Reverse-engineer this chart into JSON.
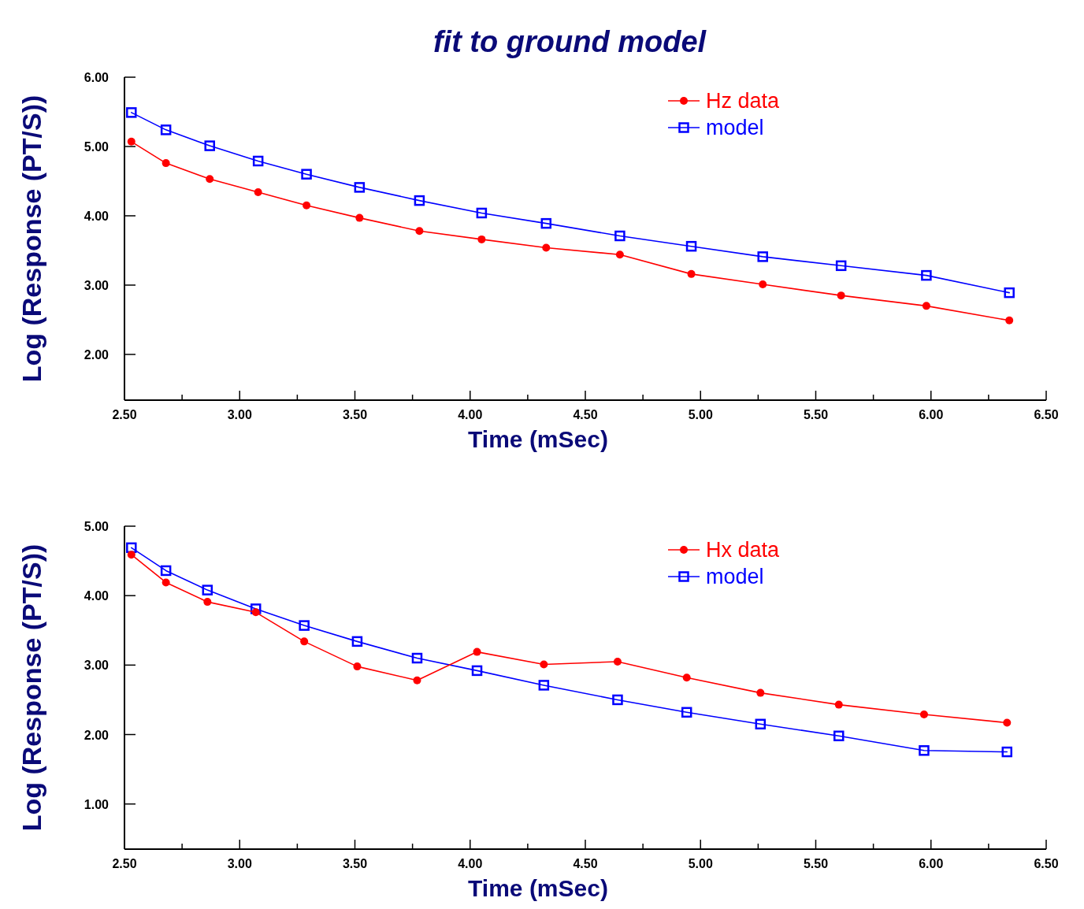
{
  "chart_data": [
    {
      "type": "line",
      "title": "fit to ground model",
      "xlabel": "Time (mSec)",
      "ylabel": "Log (Response (PT/S))",
      "x": [
        2.53,
        2.68,
        2.87,
        3.08,
        3.29,
        3.52,
        3.78,
        4.05,
        4.33,
        4.65,
        4.96,
        5.27,
        5.61,
        5.98,
        6.34
      ],
      "series": [
        {
          "name": "Hz data",
          "color": "#ff0000",
          "marker": "circle",
          "values": [
            5.07,
            4.76,
            4.53,
            4.34,
            4.15,
            3.97,
            3.78,
            3.66,
            3.54,
            3.44,
            3.16,
            3.01,
            2.85,
            2.7,
            2.49
          ]
        },
        {
          "name": "model",
          "color": "#0000ff",
          "marker": "square",
          "values": [
            5.49,
            5.24,
            5.01,
            4.79,
            4.6,
            4.41,
            4.22,
            4.04,
            3.89,
            3.71,
            3.56,
            3.41,
            3.28,
            3.14,
            2.89
          ]
        }
      ],
      "xlim": [
        2.5,
        6.5
      ],
      "ylim": [
        1.34,
        6
      ],
      "xticks": [
        {
          "value": 2.5,
          "label": "2.50"
        },
        {
          "value": 2.75,
          "label": null
        },
        {
          "value": 3,
          "label": "3.00"
        },
        {
          "value": 3.25,
          "label": null
        },
        {
          "value": 3.5,
          "label": "3.50"
        },
        {
          "value": 3.75,
          "label": null
        },
        {
          "value": 4,
          "label": "4.00"
        },
        {
          "value": 4.25,
          "label": null
        },
        {
          "value": 4.5,
          "label": "4.50"
        },
        {
          "value": 4.75,
          "label": null
        },
        {
          "value": 5,
          "label": "5.00"
        },
        {
          "value": 5.25,
          "label": null
        },
        {
          "value": 5.5,
          "label": "5.50"
        },
        {
          "value": 5.75,
          "label": null
        },
        {
          "value": 6,
          "label": "6.00"
        },
        {
          "value": 6.25,
          "label": null
        },
        {
          "value": 6.5,
          "label": "6.50"
        }
      ],
      "yticks": [
        {
          "value": 2,
          "label": "2.00"
        },
        {
          "value": 3,
          "label": "3.00"
        },
        {
          "value": 4,
          "label": "4.00"
        },
        {
          "value": 5,
          "label": "5.00"
        },
        {
          "value": 6,
          "label": "6.00"
        }
      ],
      "legend": "top right",
      "grid": false
    },
    {
      "type": "line",
      "xlabel": "Time (mSec)",
      "ylabel": "Log (Response (PT/S))",
      "x": [
        2.53,
        2.68,
        2.86,
        3.07,
        3.28,
        3.51,
        3.77,
        4.03,
        4.32,
        4.64,
        4.94,
        5.26,
        5.6,
        5.97,
        6.33
      ],
      "series": [
        {
          "name": "Hx data",
          "color": "#ff0000",
          "marker": "circle",
          "values": [
            4.59,
            4.19,
            3.91,
            3.76,
            3.34,
            2.98,
            2.78,
            3.19,
            3.01,
            3.05,
            2.82,
            2.6,
            2.43,
            2.29,
            2.17
          ]
        },
        {
          "name": "model",
          "color": "#0000ff",
          "marker": "square",
          "values": [
            4.69,
            4.36,
            4.08,
            3.81,
            3.57,
            3.34,
            3.1,
            2.92,
            2.71,
            2.5,
            2.32,
            2.15,
            1.98,
            1.77,
            1.75
          ]
        }
      ],
      "xlim": [
        2.5,
        6.5
      ],
      "ylim": [
        0.35,
        5
      ],
      "xticks": [
        {
          "value": 2.5,
          "label": "2.50"
        },
        {
          "value": 2.75,
          "label": null
        },
        {
          "value": 3,
          "label": "3.00"
        },
        {
          "value": 3.25,
          "label": null
        },
        {
          "value": 3.5,
          "label": "3.50"
        },
        {
          "value": 3.75,
          "label": null
        },
        {
          "value": 4,
          "label": "4.00"
        },
        {
          "value": 4.25,
          "label": null
        },
        {
          "value": 4.5,
          "label": "4.50"
        },
        {
          "value": 4.75,
          "label": null
        },
        {
          "value": 5,
          "label": "5.00"
        },
        {
          "value": 5.25,
          "label": null
        },
        {
          "value": 5.5,
          "label": "5.50"
        },
        {
          "value": 5.75,
          "label": null
        },
        {
          "value": 6,
          "label": "6.00"
        },
        {
          "value": 6.25,
          "label": null
        },
        {
          "value": 6.5,
          "label": "6.50"
        }
      ],
      "yticks": [
        {
          "value": 1,
          "label": "1.00"
        },
        {
          "value": 2,
          "label": "2.00"
        },
        {
          "value": 3,
          "label": "3.00"
        },
        {
          "value": 4,
          "label": "4.00"
        },
        {
          "value": 5,
          "label": "5.00"
        }
      ],
      "legend": "top right",
      "grid": false
    }
  ]
}
